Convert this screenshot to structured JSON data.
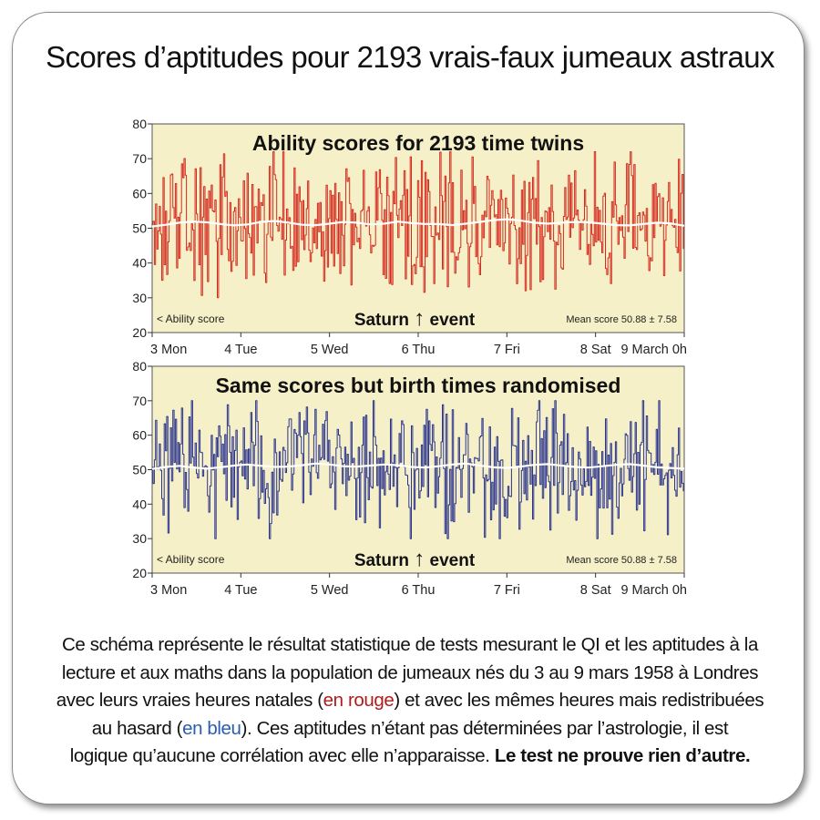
{
  "page": {
    "title": "Scores d’aptitudes pour 2193 vrais-faux jumeaux astraux",
    "caption": {
      "line1": "Ce schéma représente le résultat statistique de tests mesurant le QI et les aptitudes à la",
      "line2": "lecture et aux maths dans la population de jumeaux nés du 3 au 9 mars 1958 à Londres",
      "line3_pre": "avec leurs vraies heures natales (",
      "red_text": "en rouge",
      "line3_post": ") et avec les mêmes heures mais redistribuées",
      "line4_pre": "au hasard (",
      "blue_text": "en bleu",
      "line4_post": "). Ces aptitudes n’étant pas déterminées par l’astrologie, il est",
      "line5_pre": "logique qu’aucune corrélation avec elle n’apparaisse. ",
      "line5_bold": "Le test ne prouve rien d’autre."
    },
    "colors": {
      "red": "#b01c1c",
      "blue": "#2a5db0"
    }
  },
  "chart_data": [
    {
      "type": "line",
      "title": "Ability scores for 2193 time twins",
      "ylim": [
        20,
        80
      ],
      "yticks": [
        20,
        30,
        40,
        50,
        60,
        70,
        80
      ],
      "x_ticks": [
        "3 Mon",
        "4 Tue",
        "5 Wed",
        "6 Thu",
        "7 Fri",
        "8 Sat",
        "9 March 0h"
      ],
      "annotations": {
        "left": "< Ability score",
        "center": "Saturn",
        "center_arrow": "↑",
        "center_post": "event",
        "right": "Mean score 50.88 ± 7.58"
      },
      "background_color": "#f6f0c8",
      "series": [
        {
          "color": "#d42a1e",
          "range": [
            30,
            72
          ],
          "values": [
            50.5,
            51,
            51.6,
            51.9,
            51.7,
            51.2,
            50.8,
            51.1,
            51.8,
            52.1,
            51.6,
            51,
            50.9,
            51.3,
            51.8,
            51.6,
            51.1,
            51.3,
            51.9,
            51.5,
            51.2,
            51.2,
            50.9,
            51.3,
            51.8,
            52.3,
            52.6,
            52.2,
            51.6,
            51.3,
            51.6,
            51.8,
            51.7,
            51.3,
            50.9,
            50.8,
            51.2,
            51.6,
            51.4,
            50.7
          ],
          "mean": 50.88,
          "sd": 7.58
        }
      ],
      "count": 2193
    },
    {
      "type": "line",
      "title": "Same scores but birth times randomised",
      "ylim": [
        20,
        80
      ],
      "yticks": [
        20,
        30,
        40,
        50,
        60,
        70,
        80
      ],
      "x_ticks": [
        "3 Mon",
        "4 Tue",
        "5 Wed",
        "6 Thu",
        "7 Fri",
        "8 Sat",
        "9 March 0h"
      ],
      "annotations": {
        "left": "< Ability score",
        "center": "Saturn",
        "center_arrow": "↑",
        "center_post": "event",
        "right": "Mean score 50.88 ± 7.58"
      },
      "background_color": "#f6f0c8",
      "series": [
        {
          "color": "#2b348c",
          "range": [
            30,
            70
          ],
          "values": [
            50.2,
            50.8,
            51.1,
            50.6,
            50.3,
            50.7,
            51.2,
            51.5,
            51.1,
            50.8,
            50.9,
            51.3,
            51.8,
            51.5,
            51,
            50.9,
            51.2,
            51.5,
            51.3,
            50.8,
            50.6,
            51,
            51.5,
            51.8,
            51.2,
            50.7,
            50.5,
            50.9,
            51.4,
            51.6,
            51.2,
            50.8,
            50.6,
            51,
            51.4,
            51.6,
            51.2,
            50.7,
            50.5,
            50.3
          ],
          "mean": 50.88,
          "sd": 7.58
        }
      ],
      "count": 2193
    }
  ]
}
